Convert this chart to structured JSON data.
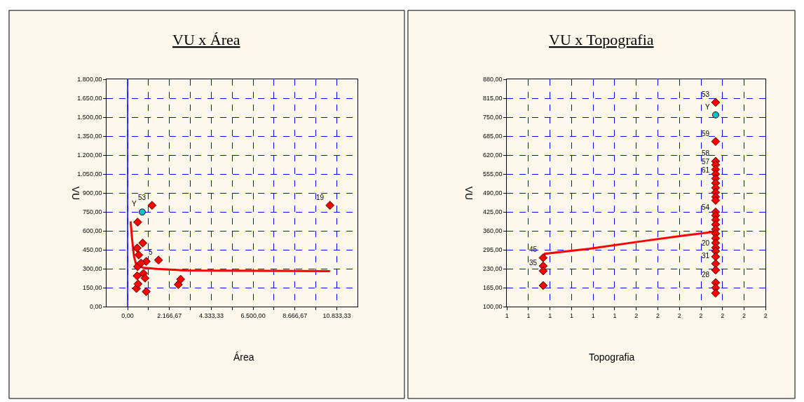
{
  "chart_data": [
    {
      "type": "scatter",
      "title": "VU x Área",
      "xlabel": "Área",
      "ylabel": "VU",
      "grid": true,
      "xlim": [
        -1083.33,
        11916.67
      ],
      "xticks": [
        {
          "value": 0,
          "label": "0,00"
        },
        {
          "value": 1083.33,
          "label": null
        },
        {
          "value": 2166.67,
          "label": "2.166,67"
        },
        {
          "value": 3250,
          "label": null
        },
        {
          "value": 4333.33,
          "label": "4.333,33"
        },
        {
          "value": 5416.67,
          "label": null
        },
        {
          "value": 6500,
          "label": "6.500,00"
        },
        {
          "value": 7583.33,
          "label": null
        },
        {
          "value": 8666.67,
          "label": "8.666,67"
        },
        {
          "value": 9750,
          "label": null
        },
        {
          "value": 10833.33,
          "label": "10.833,33"
        }
      ],
      "ylim": [
        0,
        1800
      ],
      "yticks": [
        {
          "value": 0,
          "label": "0,00"
        },
        {
          "value": 150,
          "label": "150,00"
        },
        {
          "value": 300,
          "label": "300,00"
        },
        {
          "value": 450,
          "label": "450,00"
        },
        {
          "value": 600,
          "label": "600,00"
        },
        {
          "value": 750,
          "label": "750,00"
        },
        {
          "value": 900,
          "label": "900,00"
        },
        {
          "value": 1050,
          "label": "1.050,00"
        },
        {
          "value": 1200,
          "label": "1.200,00"
        },
        {
          "value": 1350,
          "label": "1.350,00"
        },
        {
          "value": 1500,
          "label": "1.500,00"
        },
        {
          "value": 1650,
          "label": "1.650,00"
        },
        {
          "value": 1800,
          "label": "1.800,00"
        }
      ],
      "ref_lines": [
        {
          "axis": "x",
          "value": 0,
          "color": "#0000ff",
          "line_style": "solid"
        }
      ],
      "series": [
        {
          "color": "#ff0000",
          "marker": "diamond",
          "x": [
            1264,
            517,
            783,
            964,
            1600,
            964,
            458,
            541,
            494,
            819,
            903,
            517,
            697,
            578,
            494,
            2624,
            2744,
            10480
          ],
          "values": [
            803,
            670,
            505,
            359,
            370,
            120,
            145,
            181,
            245,
            264,
            227,
            318,
            346,
            410,
            465,
            176,
            218,
            803
          ]
        },
        {
          "color": "#00c0c0",
          "marker": "circle",
          "x": [
            758
          ],
          "values": [
            750
          ]
        },
        {
          "type": "line",
          "color": "#ff0000",
          "marker": "none",
          "x": [
            155,
            230,
            330,
            450,
            800,
            1500,
            3000,
            10480
          ],
          "values": [
            675,
            540,
            400,
            330,
            310,
            300,
            288,
            282
          ]
        }
      ],
      "annotations": [
        {
          "text": "53",
          "x": 1264,
          "y": 803
        },
        {
          "text": "Y",
          "x": 758,
          "y": 750
        },
        {
          "text": "19",
          "x": 10480,
          "y": 803
        },
        {
          "text": "5",
          "x": 1600,
          "y": 370
        }
      ]
    },
    {
      "type": "scatter",
      "title": "VU x Topografia",
      "xlabel": "Topografia",
      "ylabel": "VU",
      "grid": true,
      "xlim": [
        0.79,
        2.29
      ],
      "xticks": [
        {
          "value": 0.79,
          "label": "1"
        },
        {
          "value": 0.915,
          "label": "1"
        },
        {
          "value": 1.04,
          "label": "1"
        },
        {
          "value": 1.165,
          "label": "1"
        },
        {
          "value": 1.29,
          "label": "1"
        },
        {
          "value": 1.415,
          "label": "1"
        },
        {
          "value": 1.54,
          "label": "2"
        },
        {
          "value": 1.665,
          "label": "2"
        },
        {
          "value": 1.79,
          "label": "2"
        },
        {
          "value": 1.915,
          "label": "2"
        },
        {
          "value": 2.04,
          "label": "2"
        },
        {
          "value": 2.165,
          "label": "2"
        },
        {
          "value": 2.29,
          "label": "2"
        }
      ],
      "ylim": [
        100,
        880
      ],
      "yticks": [
        {
          "value": 100,
          "label": "100,00"
        },
        {
          "value": 165,
          "label": "165,00"
        },
        {
          "value": 230,
          "label": "230,00"
        },
        {
          "value": 295,
          "label": "295,00"
        },
        {
          "value": 360,
          "label": "360,00"
        },
        {
          "value": 425,
          "label": "425,00"
        },
        {
          "value": 490,
          "label": "490,00"
        },
        {
          "value": 555,
          "label": "555,00"
        },
        {
          "value": 620,
          "label": "620,00"
        },
        {
          "value": 685,
          "label": "685,00"
        },
        {
          "value": 750,
          "label": "750,00"
        },
        {
          "value": 815,
          "label": "815,00"
        },
        {
          "value": 880,
          "label": "880,00"
        }
      ],
      "series": [
        {
          "color": "#ff0000",
          "marker": "diamond",
          "x": [
            2,
            2,
            2,
            2,
            2,
            2,
            2,
            2,
            2,
            2,
            2,
            2,
            2,
            2,
            2,
            2,
            2,
            2,
            2,
            2,
            2,
            2,
            2,
            2,
            2,
            2,
            2,
            2,
            1,
            1,
            1,
            1
          ],
          "values": [
            801,
            667,
            599,
            587,
            571,
            555,
            540,
            524,
            508,
            492,
            477,
            465,
            425,
            413,
            398,
            382,
            366,
            351,
            335,
            319,
            303,
            291,
            272,
            248,
            226,
            183,
            165,
            147,
            268,
            240,
            223,
            173
          ]
        },
        {
          "color": "#00c0c0",
          "marker": "circle",
          "x": [
            2
          ],
          "values": [
            758
          ]
        },
        {
          "type": "line",
          "color": "#ff0000",
          "marker": "none",
          "x": [
            1,
            1.01,
            1.27,
            1.55,
            1.8,
            2
          ],
          "values": [
            265,
            282,
            299,
            323,
            343,
            358
          ]
        }
      ],
      "annotations": [
        {
          "text": "53",
          "x": 2,
          "y": 801
        },
        {
          "text": "Y",
          "x": 2,
          "y": 758
        },
        {
          "text": "59",
          "x": 2,
          "y": 667
        },
        {
          "text": "58",
          "x": 2,
          "y": 599
        },
        {
          "text": "57",
          "x": 2,
          "y": 571
        },
        {
          "text": "61",
          "x": 2,
          "y": 540
        },
        {
          "text": "54",
          "x": 2,
          "y": 413
        },
        {
          "text": "20",
          "x": 2,
          "y": 291
        },
        {
          "text": "31",
          "x": 2,
          "y": 248
        },
        {
          "text": "28",
          "x": 2,
          "y": 183
        },
        {
          "text": "45",
          "x": 1,
          "y": 268
        },
        {
          "text": "35",
          "x": 1,
          "y": 223
        }
      ]
    }
  ]
}
